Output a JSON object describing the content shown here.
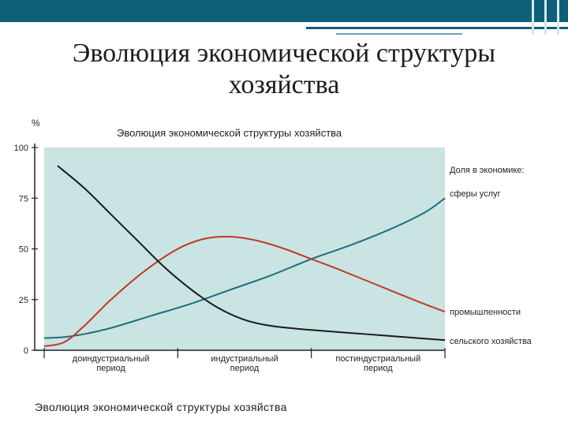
{
  "slide": {
    "title_line1": "Эволюция экономической структуры",
    "title_line2": "хозяйства"
  },
  "caption": "Эволюция экономической структуры хозяйства",
  "chart_data": {
    "type": "line",
    "title": "Эволюция экономической структуры хозяйства",
    "ylabel": "%",
    "ylim": [
      0,
      100
    ],
    "yticks": [
      0,
      25,
      50,
      75,
      100
    ],
    "xlim": [
      0,
      3
    ],
    "periods": [
      {
        "line1": "доиндустриальный",
        "line2": "период"
      },
      {
        "line1": "индустриальный",
        "line2": "период"
      },
      {
        "line1": "постиндустриальный",
        "line2": "период"
      }
    ],
    "legend_title": "Доля в экономике:",
    "colors": {
      "background": "#c9e4e2",
      "services": "#1f6e7e",
      "industry": "#c0392b",
      "agriculture": "#1a1a1a"
    },
    "series": [
      {
        "name": "сферы услуг",
        "color": "#1f6e7e",
        "x": [
          0,
          0.15,
          0.3,
          0.5,
          0.8,
          1.1,
          1.4,
          1.7,
          2.0,
          2.3,
          2.6,
          2.85,
          3.0
        ],
        "y": [
          6,
          6.5,
          8,
          11,
          17,
          23,
          30,
          37,
          45,
          52,
          60,
          68,
          75
        ]
      },
      {
        "name": "промышленности",
        "color": "#c0392b",
        "x": [
          0,
          0.15,
          0.3,
          0.5,
          0.75,
          1.0,
          1.2,
          1.4,
          1.6,
          1.8,
          2.0,
          2.2,
          2.5,
          2.8,
          3.0
        ],
        "y": [
          2,
          4,
          12,
          25,
          39,
          50,
          55,
          56,
          54,
          50,
          45,
          40,
          32,
          24,
          19
        ]
      },
      {
        "name": "сельского хозяйства",
        "color": "#1a1a1a",
        "x": [
          0.1,
          0.3,
          0.5,
          0.7,
          0.9,
          1.1,
          1.3,
          1.5,
          1.7,
          2.0,
          2.4,
          2.8,
          3.0
        ],
        "y": [
          91,
          80,
          67,
          54,
          41,
          30,
          21,
          15,
          12,
          10,
          8,
          6,
          5
        ]
      }
    ]
  }
}
